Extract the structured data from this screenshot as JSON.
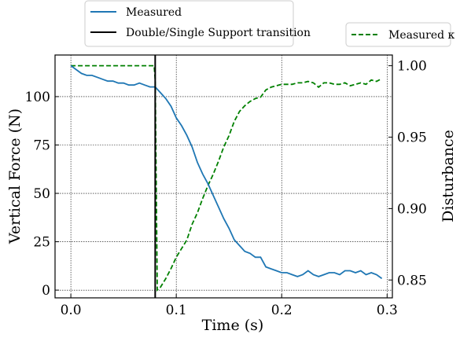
{
  "chart_data": {
    "type": "line",
    "xlabel": "Time (s)",
    "ylabel_left": "Vertical Force (N)",
    "ylabel_right": "Disturbance",
    "xlim": [
      -0.015,
      0.305
    ],
    "ylim_left": [
      -4,
      121.5
    ],
    "ylim_right": [
      0.8375,
      1.0075
    ],
    "x_ticks": [
      0.0,
      0.1,
      0.2,
      0.3
    ],
    "x_tick_labels": [
      "0.0",
      "0.1",
      "0.2",
      "0.3"
    ],
    "y_left_ticks": [
      0,
      25,
      50,
      75,
      100
    ],
    "y_left_tick_labels": [
      "0",
      "25",
      "50",
      "75",
      "100"
    ],
    "y_right_ticks": [
      0.85,
      0.9,
      0.95,
      1.0
    ],
    "y_right_tick_labels": [
      "0.85",
      "0.90",
      "0.95",
      "1.00"
    ],
    "grid": true,
    "grid_style": "dotted",
    "legend_left": {
      "placement": "top-left, above plot",
      "entries": [
        {
          "label": "Measured",
          "color": "#1f77b4",
          "style": "solid"
        },
        {
          "label": "Double/Single Support transition",
          "color": "#000000",
          "style": "solid"
        }
      ]
    },
    "legend_right": {
      "placement": "top-right, above plot",
      "entries": [
        {
          "label": "Measured κ",
          "color": "#008000",
          "style": "dashed"
        }
      ]
    },
    "transition_x": 0.08,
    "series": [
      {
        "name": "Measured",
        "axis": "left",
        "color": "#1f77b4",
        "style": "solid",
        "x": [
          0.0,
          0.005,
          0.01,
          0.015,
          0.02,
          0.025,
          0.03,
          0.035,
          0.04,
          0.045,
          0.05,
          0.055,
          0.06,
          0.065,
          0.07,
          0.075,
          0.08,
          0.085,
          0.09,
          0.095,
          0.1,
          0.105,
          0.11,
          0.115,
          0.12,
          0.125,
          0.13,
          0.135,
          0.14,
          0.145,
          0.15,
          0.155,
          0.16,
          0.165,
          0.17,
          0.175,
          0.18,
          0.185,
          0.19,
          0.195,
          0.2,
          0.205,
          0.21,
          0.215,
          0.22,
          0.225,
          0.23,
          0.235,
          0.24,
          0.245,
          0.25,
          0.255,
          0.26,
          0.265,
          0.27,
          0.275,
          0.28,
          0.285,
          0.29,
          0.295
        ],
        "values": [
          116,
          114,
          112,
          111,
          111,
          110,
          109,
          108,
          108,
          107,
          107,
          106,
          106,
          107,
          106,
          105,
          105,
          102,
          99,
          95,
          89,
          85,
          80,
          74,
          66,
          60,
          55,
          49,
          43,
          37,
          32,
          26,
          23,
          20,
          19,
          17,
          17,
          12,
          11,
          10,
          9,
          9,
          8,
          7,
          8,
          10,
          8,
          7,
          8,
          9,
          9,
          8,
          10,
          10,
          9,
          10,
          8,
          9,
          8,
          6
        ]
      },
      {
        "name": "Measured κ",
        "axis": "right",
        "color": "#008000",
        "style": "dashed",
        "x": [
          0.0,
          0.01,
          0.02,
          0.03,
          0.04,
          0.05,
          0.06,
          0.07,
          0.079,
          0.08,
          0.082,
          0.085,
          0.09,
          0.095,
          0.1,
          0.105,
          0.11,
          0.115,
          0.12,
          0.125,
          0.13,
          0.135,
          0.14,
          0.145,
          0.15,
          0.155,
          0.16,
          0.165,
          0.17,
          0.175,
          0.18,
          0.185,
          0.19,
          0.195,
          0.2,
          0.205,
          0.21,
          0.215,
          0.22,
          0.225,
          0.23,
          0.235,
          0.24,
          0.245,
          0.25,
          0.255,
          0.26,
          0.265,
          0.27,
          0.275,
          0.28,
          0.285,
          0.29,
          0.295
        ],
        "values": [
          1.0,
          1.0,
          1.0,
          1.0,
          1.0,
          1.0,
          1.0,
          1.0,
          1.0,
          0.99,
          0.843,
          0.845,
          0.851,
          0.858,
          0.866,
          0.872,
          0.878,
          0.889,
          0.897,
          0.907,
          0.916,
          0.924,
          0.933,
          0.943,
          0.951,
          0.961,
          0.968,
          0.972,
          0.975,
          0.977,
          0.978,
          0.983,
          0.985,
          0.986,
          0.987,
          0.987,
          0.987,
          0.988,
          0.988,
          0.989,
          0.988,
          0.985,
          0.988,
          0.988,
          0.987,
          0.987,
          0.988,
          0.986,
          0.987,
          0.988,
          0.987,
          0.99,
          0.989,
          0.991
        ]
      }
    ]
  }
}
